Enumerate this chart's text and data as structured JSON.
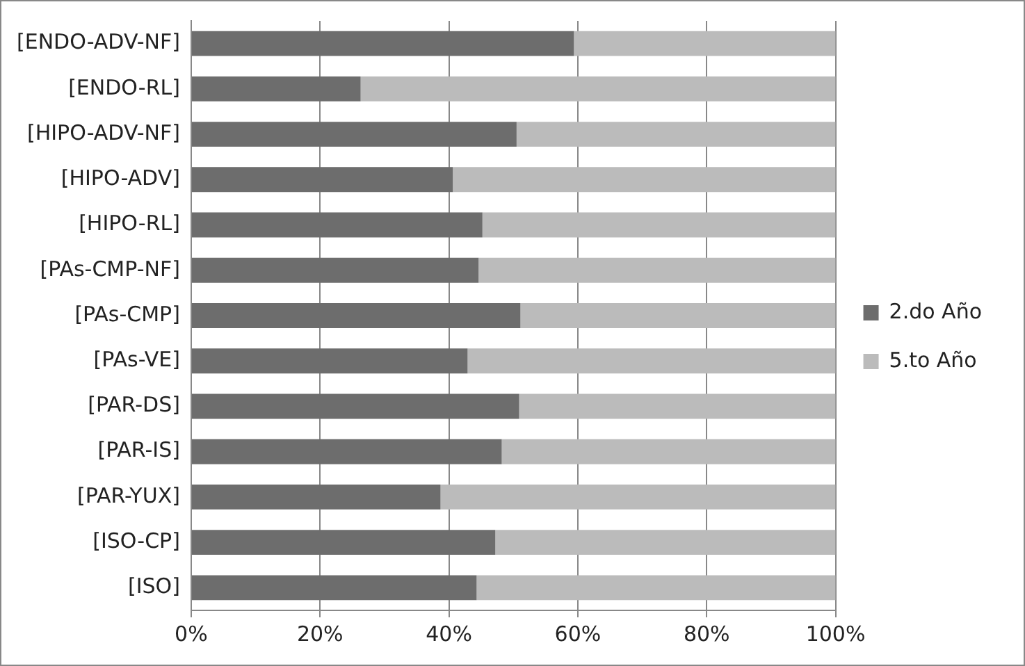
{
  "chart_data": {
    "type": "bar",
    "orientation": "horizontal",
    "stacked": true,
    "categories": [
      "[ENDO-ADV-NF]",
      "[ENDO-RL]",
      "[HIPO-ADV-NF]",
      "[HIPO-ADV]",
      "[HIPO-RL]",
      "[PAs-CMP-NF]",
      "[PAs-CMP]",
      "[PAs-VE]",
      "[PAR-DS]",
      "[PAR-IS]",
      "[PAR-YUX]",
      "[ISO-CP]",
      "[ISO]"
    ],
    "series": [
      {
        "name": "2.do Año",
        "color": "#6d6d6d",
        "values": [
          59.4,
          26.3,
          50.5,
          40.6,
          45.2,
          44.6,
          51.1,
          42.9,
          50.9,
          48.2,
          38.7,
          47.2,
          44.3
        ]
      },
      {
        "name": "5.to Año",
        "color": "#bbbbbb",
        "values": [
          40.6,
          73.7,
          49.5,
          59.4,
          54.8,
          55.4,
          48.9,
          57.1,
          49.1,
          51.8,
          61.3,
          52.8,
          55.7
        ]
      }
    ],
    "xlim": [
      0,
      100
    ],
    "xticks": [
      {
        "value": 0,
        "label": "0%"
      },
      {
        "value": 20,
        "label": "20%"
      },
      {
        "value": 40,
        "label": "40%"
      },
      {
        "value": 60,
        "label": "60%"
      },
      {
        "value": 80,
        "label": "80%"
      },
      {
        "value": 100,
        "label": "100%"
      }
    ],
    "grid": "x",
    "legend": "right"
  }
}
